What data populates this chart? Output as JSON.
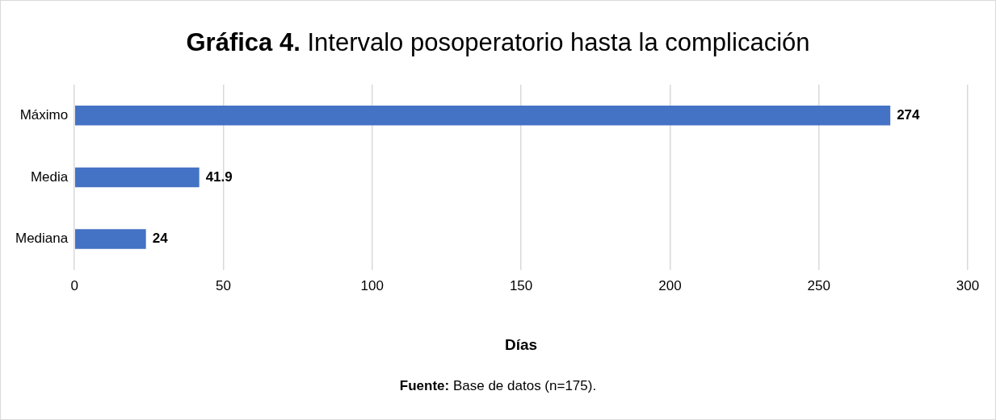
{
  "chart_data": {
    "type": "bar",
    "orientation": "horizontal",
    "title": "Gráfica 4. Intervalo posoperatorio hasta la complicación",
    "xlabel": "Días",
    "categories": [
      "Máximo",
      "Media",
      "Mediana"
    ],
    "values": [
      274,
      41.9,
      24
    ],
    "color": "#4472c4",
    "xlim": [
      0,
      300
    ],
    "xticks": [
      0,
      50,
      100,
      150,
      200,
      250,
      300
    ],
    "grid": "x",
    "legend": false,
    "data_labels": true,
    "annotations": [
      "Fuente: Base de datos (n=175)."
    ]
  }
}
